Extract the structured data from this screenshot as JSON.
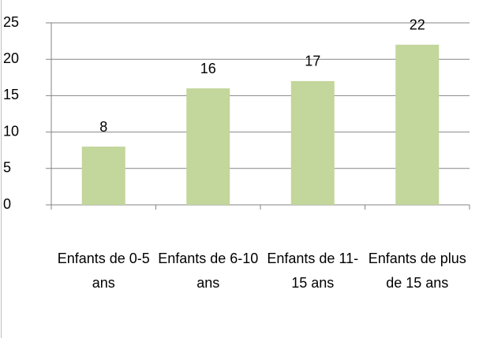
{
  "chart_data": {
    "type": "bar",
    "categories": [
      "Enfants de 0-5 ans",
      "Enfants de 6-10 ans",
      "Enfants de 11-15 ans",
      "Enfants de plus de 15 ans"
    ],
    "values": [
      8,
      16,
      17,
      22
    ],
    "color": "#c3d69b",
    "ylim": [
      0,
      25
    ],
    "yticks": [
      0,
      5,
      10,
      15,
      20,
      25
    ],
    "grid": true
  }
}
